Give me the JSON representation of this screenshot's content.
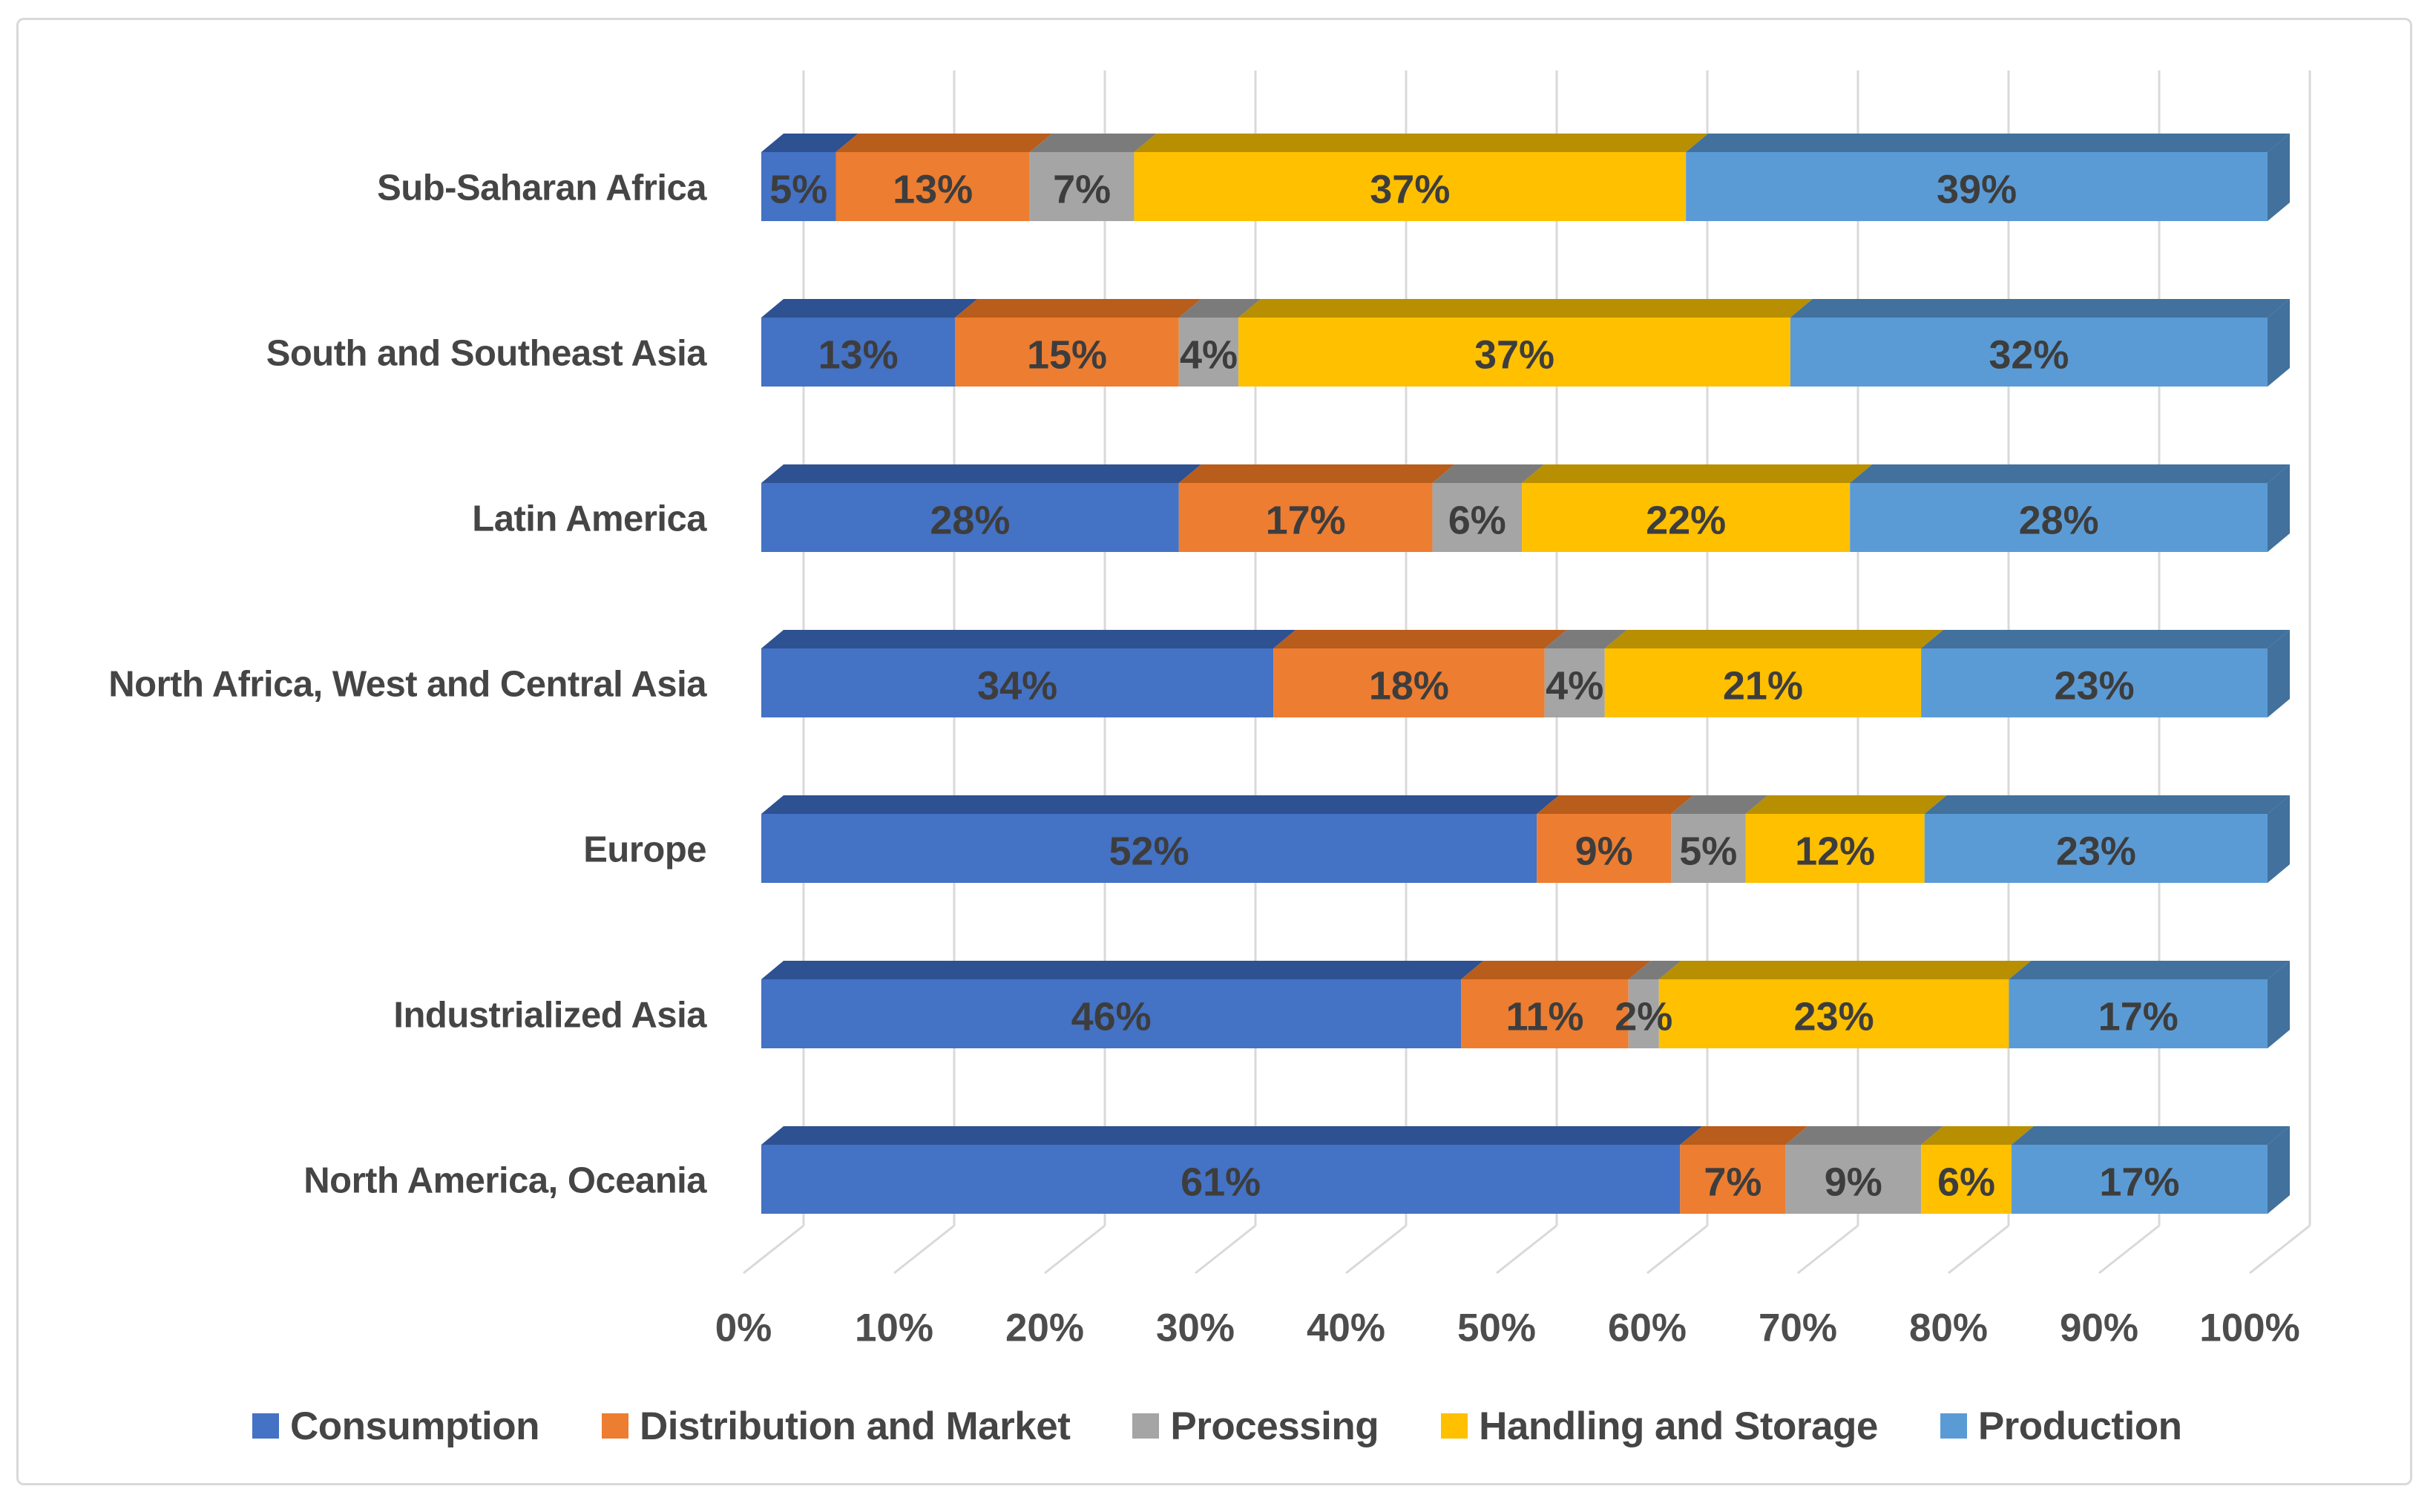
{
  "chart_data": {
    "type": "bar",
    "variant": "3d-100-percent-stacked-horizontal",
    "title": "",
    "orientation": "horizontal",
    "grid": true,
    "legend_position": "bottom",
    "value_suffix": "%",
    "categories": [
      "Sub-Saharan Africa",
      "South and Southeast Asia",
      "Latin America",
      "North Africa, West and Central Asia",
      "Europe",
      "Industrialized Asia",
      "North America, Oceania"
    ],
    "series": [
      {
        "name": "Consumption",
        "color": "#4472C4",
        "dark_color": "#2E5191",
        "values": [
          5,
          13,
          28,
          34,
          52,
          46,
          61
        ]
      },
      {
        "name": "Distribution and Market",
        "color": "#ED7D31",
        "dark_color": "#B85D1B",
        "values": [
          13,
          15,
          17,
          18,
          9,
          11,
          7
        ]
      },
      {
        "name": "Processing",
        "color": "#A5A5A5",
        "dark_color": "#7B7B7B",
        "values": [
          7,
          4,
          6,
          4,
          5,
          2,
          9
        ]
      },
      {
        "name": "Handling and Storage",
        "color": "#FFC000",
        "dark_color": "#B78F00",
        "values": [
          37,
          37,
          22,
          21,
          12,
          23,
          6
        ]
      },
      {
        "name": "Production",
        "color": "#5B9BD5",
        "dark_color": "#41719C",
        "values": [
          39,
          32,
          28,
          23,
          23,
          17,
          17
        ]
      }
    ],
    "x_axis": {
      "min": 0,
      "max": 100,
      "tick_values": [
        0,
        10,
        20,
        30,
        40,
        50,
        60,
        70,
        80,
        90,
        100
      ],
      "tick_labels": [
        "0%",
        "10%",
        "20%",
        "30%",
        "40%",
        "50%",
        "60%",
        "70%",
        "80%",
        "90%",
        "100%"
      ]
    },
    "colors": {
      "gridline": "#d9d9d9",
      "panel_border": "#d9d9d9",
      "category_label_text": "#454545",
      "axis_tick_text": "#4d4d4d",
      "data_label_text": "#3d3d3d"
    }
  }
}
